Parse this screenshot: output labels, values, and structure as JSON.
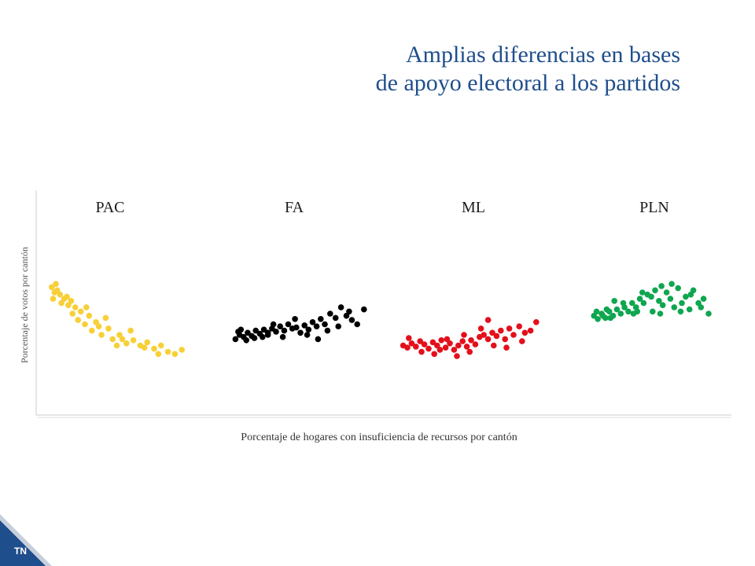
{
  "slide": {
    "title_line1": "Amplias diferencias en bases",
    "title_line2": "de apoyo electoral a los partidos",
    "corner_tag": "TN"
  },
  "colors": {
    "title": "#1f4e8c",
    "corner": "#1f4e8c",
    "PAC": "#f7d038",
    "FA": "#000000",
    "ML": "#e3101b",
    "PLN": "#0fa650"
  },
  "chart_data": {
    "type": "scatter",
    "xlabel": "Porcentaje de hogares con insuficiencia de recursos por cantón",
    "ylabel": "Porcentaje de votos por cantón",
    "grid": false,
    "panels": [
      {
        "name": "PAC",
        "color": "#f7d038",
        "points": [
          [
            0.01,
            0.85
          ],
          [
            0.03,
            0.8
          ],
          [
            0.05,
            0.82
          ],
          [
            0.07,
            0.78
          ],
          [
            0.1,
            0.74
          ],
          [
            0.13,
            0.68
          ],
          [
            0.16,
            0.6
          ],
          [
            0.2,
            0.54
          ],
          [
            0.25,
            0.5
          ],
          [
            0.3,
            0.44
          ],
          [
            0.37,
            0.4
          ],
          [
            0.45,
            0.36
          ],
          [
            0.55,
            0.32
          ],
          [
            0.65,
            0.3
          ],
          [
            0.75,
            0.27
          ],
          [
            0.85,
            0.24
          ],
          [
            0.95,
            0.26
          ],
          [
            0.02,
            0.74
          ],
          [
            0.08,
            0.7
          ],
          [
            0.12,
            0.76
          ],
          [
            0.18,
            0.66
          ],
          [
            0.22,
            0.62
          ],
          [
            0.28,
            0.58
          ],
          [
            0.35,
            0.48
          ],
          [
            0.42,
            0.46
          ],
          [
            0.5,
            0.4
          ],
          [
            0.6,
            0.35
          ],
          [
            0.7,
            0.33
          ],
          [
            0.8,
            0.3
          ],
          [
            0.9,
            0.22
          ],
          [
            0.04,
            0.88
          ],
          [
            0.15,
            0.72
          ],
          [
            0.33,
            0.52
          ],
          [
            0.48,
            0.3
          ],
          [
            0.58,
            0.44
          ],
          [
            0.68,
            0.28
          ],
          [
            0.78,
            0.22
          ],
          [
            0.26,
            0.66
          ],
          [
            0.4,
            0.56
          ],
          [
            0.52,
            0.36
          ]
        ]
      },
      {
        "name": "FA",
        "color": "#000000",
        "points": [
          [
            0.02,
            0.36
          ],
          [
            0.05,
            0.4
          ],
          [
            0.08,
            0.38
          ],
          [
            0.11,
            0.42
          ],
          [
            0.14,
            0.39
          ],
          [
            0.17,
            0.44
          ],
          [
            0.2,
            0.41
          ],
          [
            0.23,
            0.45
          ],
          [
            0.26,
            0.4
          ],
          [
            0.29,
            0.46
          ],
          [
            0.32,
            0.43
          ],
          [
            0.35,
            0.48
          ],
          [
            0.38,
            0.44
          ],
          [
            0.41,
            0.5
          ],
          [
            0.44,
            0.46
          ],
          [
            0.47,
            0.47
          ],
          [
            0.5,
            0.42
          ],
          [
            0.53,
            0.49
          ],
          [
            0.56,
            0.45
          ],
          [
            0.59,
            0.52
          ],
          [
            0.62,
            0.48
          ],
          [
            0.65,
            0.55
          ],
          [
            0.68,
            0.5
          ],
          [
            0.72,
            0.6
          ],
          [
            0.76,
            0.56
          ],
          [
            0.8,
            0.66
          ],
          [
            0.84,
            0.58
          ],
          [
            0.88,
            0.54
          ],
          [
            0.92,
            0.5
          ],
          [
            0.97,
            0.64
          ],
          [
            0.04,
            0.43
          ],
          [
            0.1,
            0.35
          ],
          [
            0.16,
            0.37
          ],
          [
            0.22,
            0.38
          ],
          [
            0.3,
            0.5
          ],
          [
            0.37,
            0.38
          ],
          [
            0.46,
            0.55
          ],
          [
            0.55,
            0.4
          ],
          [
            0.63,
            0.36
          ],
          [
            0.7,
            0.44
          ],
          [
            0.78,
            0.48
          ],
          [
            0.86,
            0.62
          ],
          [
            0.06,
            0.45
          ],
          [
            0.26,
            0.42
          ]
        ]
      },
      {
        "name": "ML",
        "color": "#e3101b",
        "points": [
          [
            0.02,
            0.3
          ],
          [
            0.05,
            0.28
          ],
          [
            0.08,
            0.32
          ],
          [
            0.11,
            0.29
          ],
          [
            0.14,
            0.34
          ],
          [
            0.17,
            0.31
          ],
          [
            0.2,
            0.27
          ],
          [
            0.23,
            0.33
          ],
          [
            0.26,
            0.3
          ],
          [
            0.29,
            0.35
          ],
          [
            0.32,
            0.28
          ],
          [
            0.35,
            0.32
          ],
          [
            0.38,
            0.26
          ],
          [
            0.41,
            0.3
          ],
          [
            0.44,
            0.34
          ],
          [
            0.47,
            0.29
          ],
          [
            0.5,
            0.35
          ],
          [
            0.53,
            0.31
          ],
          [
            0.56,
            0.38
          ],
          [
            0.59,
            0.4
          ],
          [
            0.62,
            0.36
          ],
          [
            0.65,
            0.42
          ],
          [
            0.68,
            0.39
          ],
          [
            0.71,
            0.44
          ],
          [
            0.74,
            0.36
          ],
          [
            0.77,
            0.46
          ],
          [
            0.8,
            0.4
          ],
          [
            0.84,
            0.48
          ],
          [
            0.88,
            0.42
          ],
          [
            0.92,
            0.44
          ],
          [
            0.96,
            0.52
          ],
          [
            0.06,
            0.37
          ],
          [
            0.15,
            0.24
          ],
          [
            0.24,
            0.22
          ],
          [
            0.33,
            0.36
          ],
          [
            0.4,
            0.2
          ],
          [
            0.49,
            0.24
          ],
          [
            0.57,
            0.46
          ],
          [
            0.66,
            0.3
          ],
          [
            0.75,
            0.28
          ],
          [
            0.86,
            0.34
          ],
          [
            0.62,
            0.54
          ],
          [
            0.45,
            0.4
          ],
          [
            0.28,
            0.26
          ]
        ]
      },
      {
        "name": "PLN",
        "color": "#0fa650",
        "points": [
          [
            0.02,
            0.58
          ],
          [
            0.05,
            0.55
          ],
          [
            0.08,
            0.6
          ],
          [
            0.11,
            0.56
          ],
          [
            0.14,
            0.62
          ],
          [
            0.17,
            0.58
          ],
          [
            0.2,
            0.64
          ],
          [
            0.23,
            0.6
          ],
          [
            0.26,
            0.66
          ],
          [
            0.29,
            0.62
          ],
          [
            0.32,
            0.7
          ],
          [
            0.35,
            0.66
          ],
          [
            0.38,
            0.74
          ],
          [
            0.41,
            0.7
          ],
          [
            0.44,
            0.78
          ],
          [
            0.47,
            0.76
          ],
          [
            0.5,
            0.82
          ],
          [
            0.53,
            0.72
          ],
          [
            0.56,
            0.68
          ],
          [
            0.59,
            0.8
          ],
          [
            0.62,
            0.74
          ],
          [
            0.65,
            0.66
          ],
          [
            0.68,
            0.84
          ],
          [
            0.71,
            0.7
          ],
          [
            0.74,
            0.76
          ],
          [
            0.77,
            0.64
          ],
          [
            0.8,
            0.82
          ],
          [
            0.84,
            0.7
          ],
          [
            0.88,
            0.74
          ],
          [
            0.92,
            0.6
          ],
          [
            0.04,
            0.62
          ],
          [
            0.12,
            0.64
          ],
          [
            0.18,
            0.72
          ],
          [
            0.25,
            0.7
          ],
          [
            0.33,
            0.6
          ],
          [
            0.4,
            0.8
          ],
          [
            0.48,
            0.62
          ],
          [
            0.55,
            0.86
          ],
          [
            0.63,
            0.88
          ],
          [
            0.7,
            0.62
          ],
          [
            0.78,
            0.78
          ],
          [
            0.86,
            0.66
          ],
          [
            0.15,
            0.56
          ],
          [
            0.36,
            0.62
          ],
          [
            0.54,
            0.6
          ],
          [
            0.09,
            0.58
          ]
        ]
      }
    ]
  }
}
